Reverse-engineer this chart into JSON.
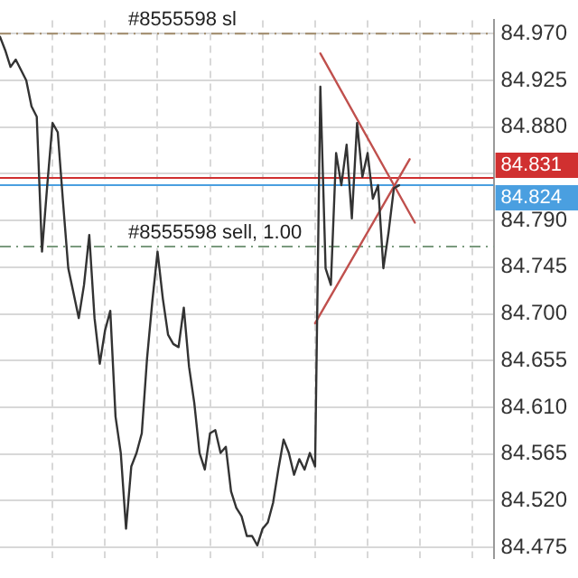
{
  "chart_data": {
    "type": "line",
    "categories": [
      null,
      null,
      null,
      null,
      null,
      null,
      null,
      null,
      null,
      null,
      null,
      null,
      null,
      null,
      null,
      null,
      null,
      null,
      null,
      null,
      null,
      null,
      null,
      null,
      null,
      null,
      null,
      null,
      null,
      null,
      null,
      null,
      null,
      null,
      null,
      null,
      null,
      null,
      null,
      null,
      null,
      null,
      null,
      null,
      null,
      null,
      null,
      null,
      null,
      null,
      null,
      null,
      null,
      null,
      null,
      null,
      null,
      null,
      null,
      null,
      null,
      null,
      null,
      null,
      null,
      null,
      null,
      null,
      null,
      null,
      null,
      null,
      null,
      null,
      null,
      null,
      null,
      null,
      null,
      null,
      null,
      null,
      null,
      null,
      null,
      null,
      null,
      null,
      null,
      null,
      null,
      null,
      null,
      null,
      null
    ],
    "series": [
      {
        "color": "#333333",
        "values": [
          84.967,
          84.954,
          84.938,
          84.945,
          84.935,
          84.925,
          84.9,
          84.89,
          84.76,
          84.824,
          84.884,
          84.875,
          84.808,
          84.744,
          84.72,
          84.696,
          84.728,
          84.776,
          84.696,
          84.652,
          84.684,
          84.703,
          84.601,
          84.566,
          84.493,
          84.553,
          84.566,
          84.585,
          84.657,
          84.712,
          84.76,
          84.715,
          84.68,
          84.671,
          84.668,
          84.706,
          84.649,
          84.614,
          84.566,
          84.55,
          84.585,
          84.588,
          84.566,
          84.572,
          84.529,
          84.513,
          84.505,
          84.486,
          84.486,
          84.477,
          84.493,
          84.499,
          84.518,
          84.55,
          84.579,
          84.566,
          84.545,
          84.56,
          84.55,
          84.566,
          84.553,
          84.919,
          84.744,
          84.728,
          84.855,
          84.824,
          84.863,
          84.792,
          84.884,
          84.832,
          84.855,
          84.811,
          84.824,
          84.744,
          84.779,
          84.821,
          84.824,
          null,
          null,
          null,
          null,
          null,
          null,
          null,
          null,
          null,
          null,
          null,
          null,
          null,
          null,
          null,
          null,
          null,
          null
        ]
      },
      {
        "type": "line",
        "color": "#c0504d",
        "values": [
          null,
          null,
          null,
          null,
          null,
          null,
          null,
          null,
          null,
          null,
          null,
          null,
          null,
          null,
          null,
          null,
          null,
          null,
          null,
          null,
          null,
          null,
          null,
          null,
          null,
          null,
          null,
          null,
          null,
          null,
          null,
          null,
          null,
          null,
          null,
          null,
          null,
          null,
          null,
          null,
          null,
          null,
          null,
          null,
          null,
          null,
          null,
          null,
          null,
          null,
          null,
          null,
          null,
          null,
          null,
          null,
          null,
          null,
          null,
          null,
          null,
          84.951,
          null,
          null,
          null,
          null,
          null,
          null,
          null,
          null,
          null,
          null,
          null,
          null,
          null,
          null,
          null,
          null,
          null,
          84.788,
          null,
          null,
          null,
          null,
          null,
          null,
          null,
          null,
          null,
          null,
          null,
          null,
          null,
          null,
          null
        ]
      },
      {
        "type": "line",
        "color": "#c0504d",
        "values": [
          null,
          null,
          null,
          null,
          null,
          null,
          null,
          null,
          null,
          null,
          null,
          null,
          null,
          null,
          null,
          null,
          null,
          null,
          null,
          null,
          null,
          null,
          null,
          null,
          null,
          null,
          null,
          null,
          null,
          null,
          null,
          null,
          null,
          null,
          null,
          null,
          null,
          null,
          null,
          null,
          null,
          null,
          null,
          null,
          null,
          null,
          null,
          null,
          null,
          null,
          null,
          null,
          null,
          null,
          null,
          null,
          null,
          null,
          null,
          null,
          84.691,
          null,
          null,
          null,
          null,
          null,
          null,
          null,
          null,
          null,
          null,
          null,
          null,
          null,
          null,
          null,
          null,
          null,
          84.849,
          null,
          null,
          null,
          null,
          null,
          null,
          null,
          null,
          null,
          null,
          null,
          null,
          null,
          null,
          null,
          null
        ]
      }
    ],
    "ylim": [
      84.465,
      84.983
    ],
    "yticks": [
      {
        "value": 84.475,
        "label": "84.475"
      },
      {
        "value": 84.52,
        "label": "84.520"
      },
      {
        "value": 84.565,
        "label": "84.565"
      },
      {
        "value": 84.61,
        "label": "84.610"
      },
      {
        "value": 84.655,
        "label": "84.655"
      },
      {
        "value": 84.7,
        "label": "84.700"
      },
      {
        "value": 84.745,
        "label": "84.745"
      },
      {
        "value": 84.79,
        "label": "84.790"
      },
      {
        "value": 84.835,
        "label": null
      },
      {
        "value": 84.88,
        "label": "84.880"
      },
      {
        "value": 84.925,
        "label": "84.925"
      },
      {
        "value": 84.97,
        "label": "84.970"
      }
    ],
    "ref_lines": [
      {
        "axis": "y",
        "value": 84.97,
        "label": "#8555598 sl",
        "color": "#a08a6a",
        "line_style": "dashed"
      },
      {
        "axis": "y",
        "value": 84.765,
        "label": "#8555598 sell, 1.00",
        "color": "#7a9a7e",
        "line_style": "dashed"
      },
      {
        "axis": "y",
        "value": 84.831,
        "label": "84.831",
        "color": "#d03030",
        "line_style": "solid"
      },
      {
        "axis": "y",
        "value": 84.824,
        "label": "84.824",
        "color": "#4a9fe0",
        "line_style": "solid"
      }
    ],
    "grid": true,
    "tick_labels": "y",
    "legend": false,
    "marker": "none",
    "line_style": "solid"
  }
}
